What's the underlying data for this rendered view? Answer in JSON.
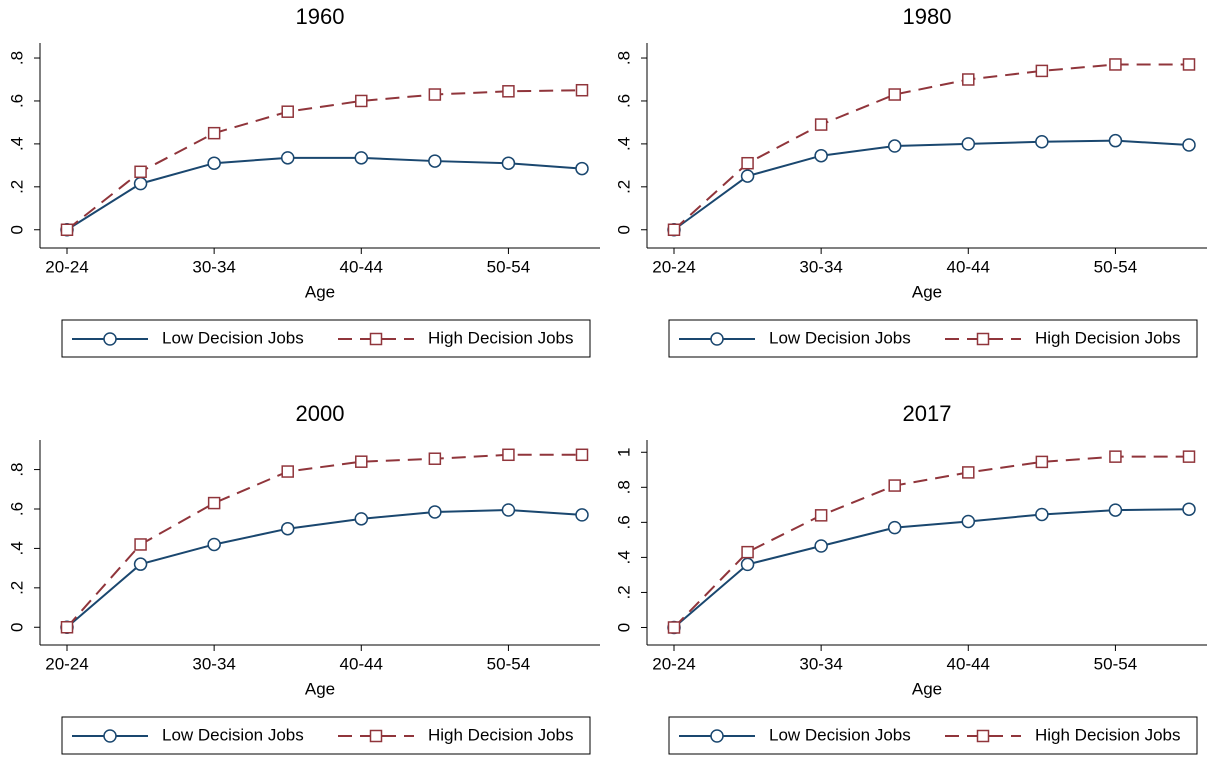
{
  "chart_data": [
    {
      "type": "line",
      "title": "1960",
      "x_label": "Age",
      "categories": [
        "20-24",
        null,
        "30-34",
        null,
        "40-44",
        null,
        "50-54",
        null
      ],
      "series": [
        {
          "name": "Low Decision Jobs",
          "color": "#1a476f",
          "marker": "circle",
          "dash": false,
          "values": [
            0,
            0.215,
            0.31,
            0.335,
            0.335,
            0.32,
            0.31,
            0.285
          ]
        },
        {
          "name": "High Decision Jobs",
          "color": "#90353b",
          "marker": "square",
          "dash": true,
          "values": [
            0,
            0.27,
            0.45,
            0.55,
            0.6,
            0.63,
            0.645,
            0.65
          ]
        }
      ],
      "ylim": [
        -0.085,
        0.87
      ],
      "yticks": [
        0,
        {
          "value": 0.2,
          "label": ".2"
        },
        {
          "value": 0.4,
          "label": ".4"
        },
        {
          "value": 0.6,
          "label": ".6"
        },
        {
          "value": 0.8,
          "label": ".8"
        }
      ],
      "legend": "bottom"
    },
    {
      "type": "line",
      "title": "1980",
      "x_label": "Age",
      "categories": [
        "20-24",
        null,
        "30-34",
        null,
        "40-44",
        null,
        "50-54",
        null
      ],
      "series": [
        {
          "name": "Low Decision Jobs",
          "color": "#1a476f",
          "marker": "circle",
          "dash": false,
          "values": [
            0,
            0.25,
            0.345,
            0.39,
            0.4,
            0.41,
            0.415,
            0.395
          ]
        },
        {
          "name": "High Decision Jobs",
          "color": "#90353b",
          "marker": "square",
          "dash": true,
          "values": [
            0,
            0.31,
            0.49,
            0.63,
            0.7,
            0.74,
            0.77,
            0.77
          ]
        }
      ],
      "ylim": [
        -0.085,
        0.87
      ],
      "yticks": [
        0,
        {
          "value": 0.2,
          "label": ".2"
        },
        {
          "value": 0.4,
          "label": ".4"
        },
        {
          "value": 0.6,
          "label": ".6"
        },
        {
          "value": 0.8,
          "label": ".8"
        }
      ],
      "legend": "bottom"
    },
    {
      "type": "line",
      "title": "2000",
      "x_label": "Age",
      "categories": [
        "20-24",
        null,
        "30-34",
        null,
        "40-44",
        null,
        "50-54",
        null
      ],
      "series": [
        {
          "name": "Low Decision Jobs",
          "color": "#1a476f",
          "marker": "circle",
          "dash": false,
          "values": [
            0,
            0.32,
            0.42,
            0.5,
            0.55,
            0.585,
            0.595,
            0.57
          ]
        },
        {
          "name": "High Decision Jobs",
          "color": "#90353b",
          "marker": "square",
          "dash": true,
          "values": [
            0,
            0.42,
            0.63,
            0.79,
            0.84,
            0.855,
            0.875,
            0.875
          ]
        }
      ],
      "ylim": [
        -0.09,
        0.95
      ],
      "yticks": [
        0,
        {
          "value": 0.2,
          "label": ".2"
        },
        {
          "value": 0.4,
          "label": ".4"
        },
        {
          "value": 0.6,
          "label": ".6"
        },
        {
          "value": 0.8,
          "label": ".8"
        }
      ],
      "legend": "bottom"
    },
    {
      "type": "line",
      "title": "2017",
      "x_label": "Age",
      "categories": [
        "20-24",
        null,
        "30-34",
        null,
        "40-44",
        null,
        "50-54",
        null
      ],
      "series": [
        {
          "name": "Low Decision Jobs",
          "color": "#1a476f",
          "marker": "circle",
          "dash": false,
          "values": [
            0,
            0.36,
            0.465,
            0.57,
            0.605,
            0.645,
            0.67,
            0.675
          ]
        },
        {
          "name": "High Decision Jobs",
          "color": "#90353b",
          "marker": "square",
          "dash": true,
          "values": [
            0,
            0.43,
            0.64,
            0.81,
            0.885,
            0.945,
            0.975,
            0.975
          ]
        }
      ],
      "ylim": [
        -0.1,
        1.07
      ],
      "yticks": [
        0,
        {
          "value": 0.2,
          "label": ".2"
        },
        {
          "value": 0.4,
          "label": ".4"
        },
        {
          "value": 0.6,
          "label": ".6"
        },
        {
          "value": 0.8,
          "label": ".8"
        },
        1
      ],
      "legend": "bottom"
    }
  ]
}
